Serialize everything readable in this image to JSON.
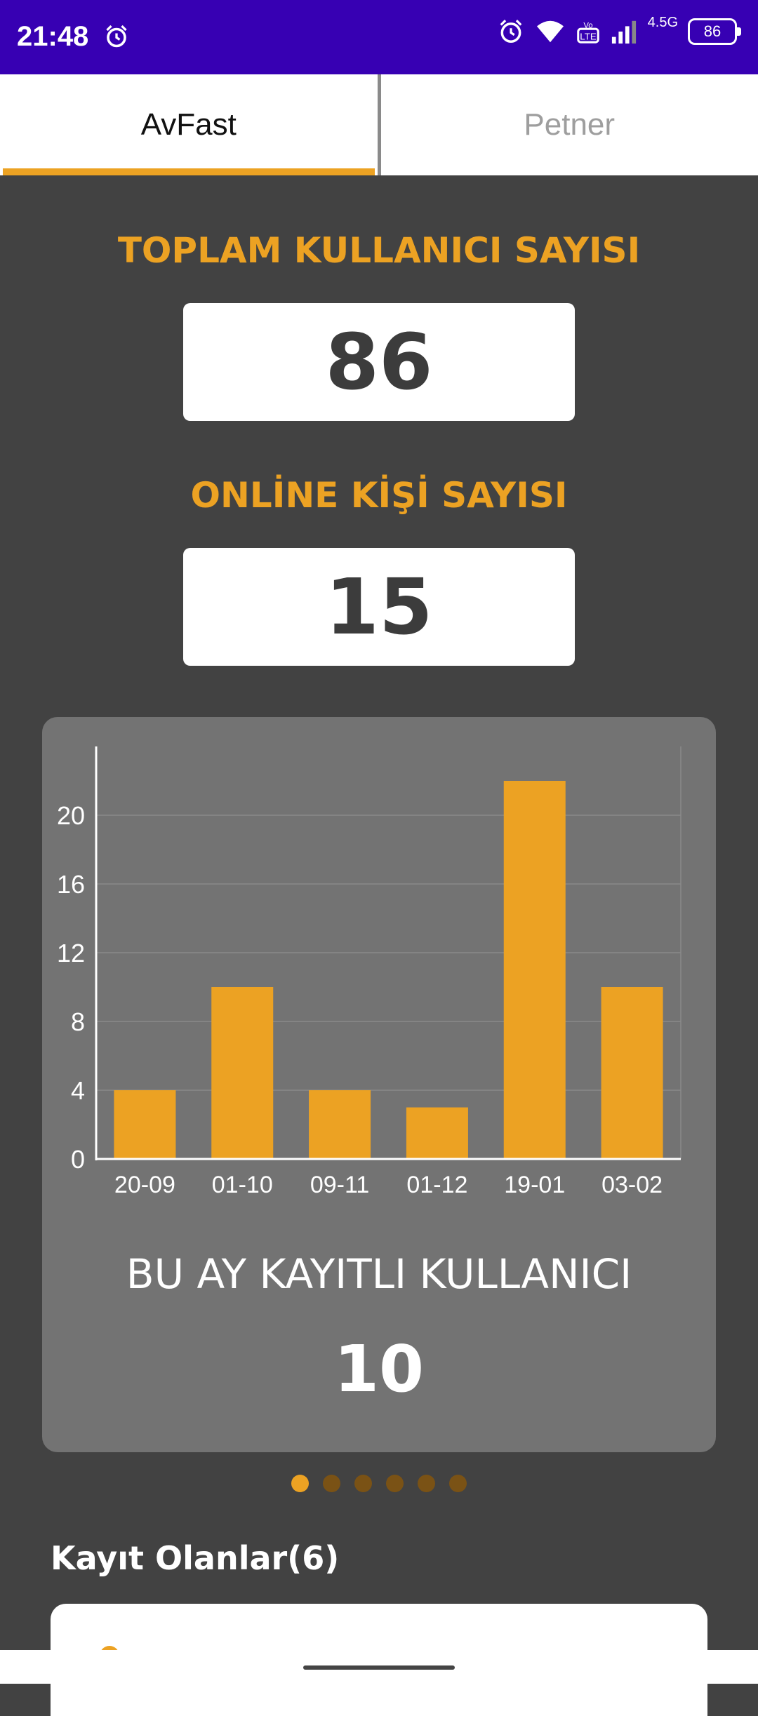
{
  "status_bar": {
    "time": "21:48",
    "network": "4.5G",
    "battery": "86",
    "icons": [
      "alarm-icon",
      "wifi-icon",
      "volte-icon",
      "signal-icon",
      "battery-icon"
    ]
  },
  "tabs": [
    {
      "label": "AvFast",
      "active": true
    },
    {
      "label": "Petner",
      "active": false
    }
  ],
  "stats": {
    "total_users_label": "TOPLAM KULLANICI SAYISI",
    "total_users_value": "86",
    "online_label": "ONLİNE KİŞİ SAYISI",
    "online_value": "15"
  },
  "chart_card": {
    "caption": "BU AY KAYITLI KULLANICI",
    "value": "10"
  },
  "chart_data": {
    "type": "bar",
    "categories": [
      "20-09",
      "01-10",
      "09-11",
      "01-12",
      "19-01",
      "03-02"
    ],
    "values": [
      4,
      10,
      4,
      3,
      22,
      10
    ],
    "ylim": [
      0,
      24
    ],
    "yticks": [
      0,
      4,
      8,
      12,
      16,
      20
    ],
    "grid": true,
    "bar_color": "#eca223"
  },
  "pager": {
    "count": 6,
    "active_index": 0
  },
  "list": {
    "title": "Kayıt Olanlar(6)"
  },
  "colors": {
    "accent": "#eca223",
    "status_bar": "#3700b3",
    "background": "#424242",
    "card": "#737373"
  }
}
